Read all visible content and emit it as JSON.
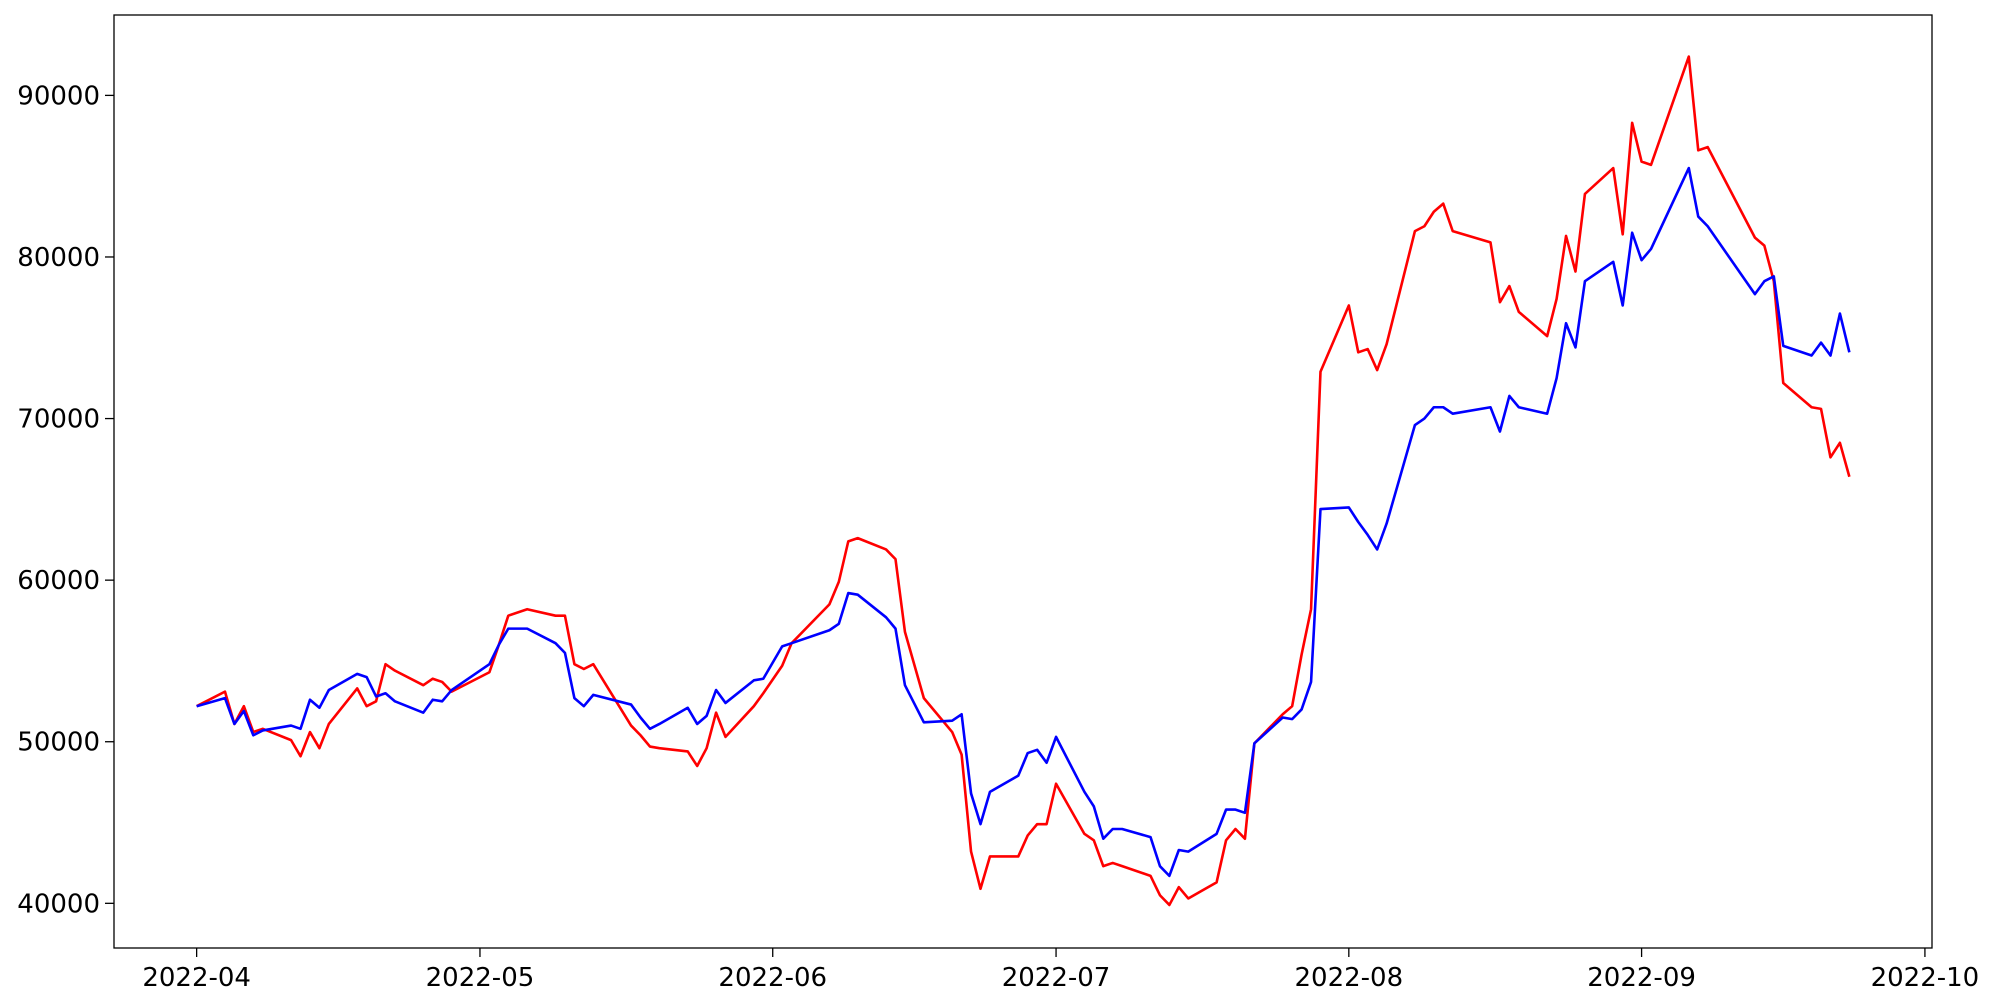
{
  "chart_data": {
    "type": "line",
    "x": [
      19083,
      19086,
      19087,
      19088,
      19089,
      19090,
      19093,
      19094,
      19095,
      19096,
      19097,
      19100,
      19101,
      19102,
      19103,
      19104,
      19107,
      19108,
      19109,
      19110,
      19114,
      19115,
      19116,
      19118,
      19121,
      19122,
      19123,
      19124,
      19125,
      19129,
      19130,
      19131,
      19132,
      19135,
      19136,
      19137,
      19138,
      19139,
      19142,
      19143,
      19145,
      19146,
      19150,
      19151,
      19152,
      19153,
      19156,
      19157,
      19158,
      19160,
      19163,
      19164,
      19165,
      19166,
      19167,
      19170,
      19171,
      19172,
      19173,
      19174,
      19177,
      19178,
      19179,
      19180,
      19181,
      19184,
      19185,
      19186,
      19187,
      19188,
      19191,
      19192,
      19193,
      19194,
      19195,
      19198,
      19199,
      19200,
      19201,
      19202,
      19205,
      19206,
      19207,
      19208,
      19209,
      19212,
      19213,
      19214,
      19215,
      19216,
      19220,
      19221,
      19222,
      19223,
      19226,
      19227,
      19228,
      19229,
      19230,
      19233,
      19234,
      19235,
      19236,
      19237,
      19241,
      19242,
      19243,
      19248,
      19249,
      19250,
      19251,
      19254,
      19255,
      19256,
      19257,
      19258
    ],
    "series": [
      {
        "color": "red",
        "values": [
          52200,
          53100,
          51100,
          52200,
          50600,
          50800,
          50100,
          49100,
          50600,
          49600,
          51100,
          53300,
          52200,
          52500,
          54800,
          54400,
          53500,
          53900,
          53700,
          53100,
          54300,
          56000,
          57800,
          58200,
          57800,
          57800,
          54800,
          54500,
          54800,
          51000,
          50400,
          49700,
          49600,
          49400,
          48500,
          49600,
          51800,
          50300,
          52200,
          53000,
          54700,
          56100,
          58500,
          59900,
          62400,
          62600,
          61900,
          61300,
          56800,
          52700,
          50600,
          49200,
          43200,
          40900,
          42900,
          42900,
          44200,
          44900,
          44900,
          47400,
          44300,
          43900,
          42300,
          42500,
          42300,
          41700,
          40500,
          39900,
          41000,
          40300,
          41300,
          43900,
          44600,
          44000,
          49900,
          51700,
          52200,
          55400,
          58200,
          72900,
          77000,
          74100,
          74300,
          73000,
          74600,
          81600,
          81900,
          82800,
          83300,
          81600,
          80900,
          77200,
          78200,
          76600,
          75100,
          77400,
          81300,
          79100,
          83900,
          85500,
          81400,
          88300,
          85900,
          85700,
          92400,
          86600,
          86800,
          81200,
          80700,
          78500,
          72200,
          70700,
          70600,
          67600,
          68500,
          66400
        ]
      },
      {
        "color": "blue",
        "values": [
          52200,
          52700,
          51100,
          51900,
          50400,
          50700,
          51000,
          50800,
          52600,
          52100,
          53200,
          54200,
          54000,
          52800,
          53000,
          52500,
          51800,
          52600,
          52500,
          53200,
          54800,
          56000,
          57000,
          57000,
          56100,
          55500,
          52700,
          52200,
          52900,
          52300,
          51500,
          50800,
          51100,
          52100,
          51100,
          51600,
          53200,
          52400,
          53800,
          53900,
          55900,
          56100,
          56900,
          57300,
          59200,
          59100,
          57700,
          57000,
          53500,
          51200,
          51300,
          51700,
          46800,
          44900,
          46900,
          47900,
          49300,
          49500,
          48700,
          50300,
          46900,
          46000,
          44000,
          44600,
          44600,
          44100,
          42300,
          41700,
          43300,
          43200,
          44300,
          45800,
          45800,
          45600,
          49900,
          51500,
          51400,
          52000,
          53700,
          64400,
          64500,
          63600,
          62800,
          61900,
          63500,
          69600,
          70000,
          70700,
          70700,
          70300,
          70700,
          69200,
          71400,
          70700,
          70300,
          72500,
          75900,
          74400,
          78500,
          79700,
          77000,
          81500,
          79800,
          80500,
          85500,
          82500,
          81900,
          77700,
          78500,
          78800,
          74500,
          73900,
          74700,
          73900,
          76500,
          74100
        ]
      }
    ],
    "xlim": [
      19074.25,
      19266.75
    ],
    "xticks": [
      {
        "value": 19083,
        "label": "2022-04"
      },
      {
        "value": 19113,
        "label": "2022-05"
      },
      {
        "value": 19144,
        "label": "2022-06"
      },
      {
        "value": 19174,
        "label": "2022-07"
      },
      {
        "value": 19205,
        "label": "2022-08"
      },
      {
        "value": 19236,
        "label": "2022-09"
      },
      {
        "value": 19266,
        "label": "2022-10"
      }
    ],
    "ylim": [
      37235,
      94975
    ],
    "yticks": [
      40000,
      50000,
      60000,
      70000,
      80000,
      90000
    ],
    "grid": false
  }
}
